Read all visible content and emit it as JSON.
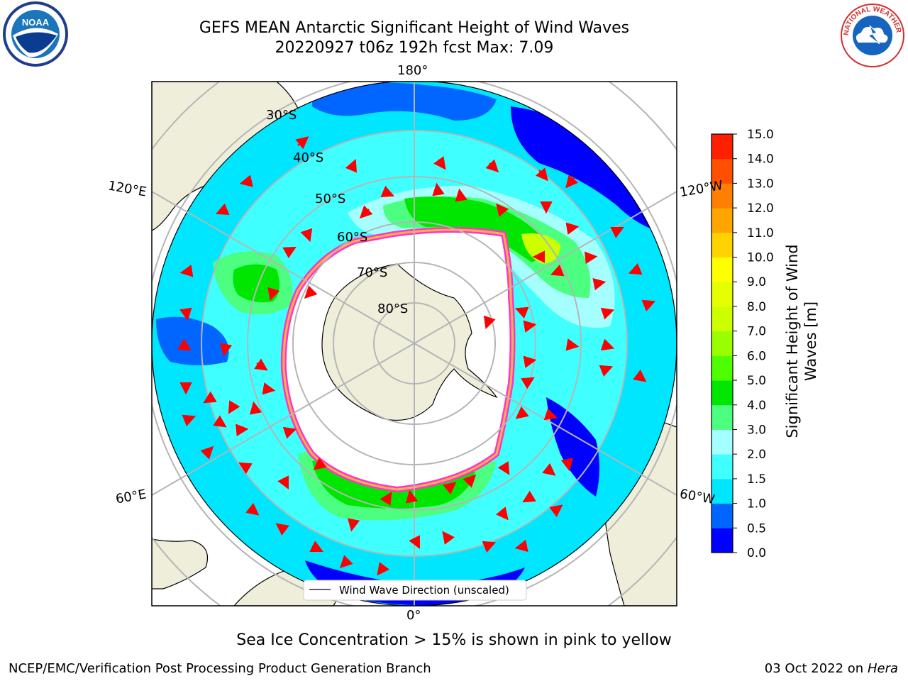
{
  "title_line1": "GEFS MEAN Antarctic Significant Height of Wind Waves",
  "title_line2": "20220927 t06z 192h fcst   Max: 7.09",
  "logos": {
    "left": "NOAA",
    "right": "NATIONAL WEATHER SERVICE"
  },
  "graticule": {
    "meridians": [
      "180°",
      "120°E",
      "120°W",
      "60°E",
      "60°W",
      "0°"
    ],
    "parallels": [
      "30°S",
      "40°S",
      "50°S",
      "60°S",
      "70°S",
      "80°S"
    ]
  },
  "legend": {
    "label": "Wind Wave Direction (unscaled)"
  },
  "colorbar": {
    "label": "Significant Height of Wind Waves [m]",
    "ticks": [
      "0.0",
      "0.5",
      "1.0",
      "1.5",
      "2.0",
      "3.0",
      "4.0",
      "5.0",
      "6.0",
      "7.0",
      "8.0",
      "9.0",
      "10.0",
      "11.0",
      "12.0",
      "13.0",
      "14.0",
      "15.0"
    ],
    "colors": [
      "#0000ff",
      "#0066ff",
      "#00e6ff",
      "#40ffff",
      "#a6ffff",
      "#4cff80",
      "#00e600",
      "#4dff00",
      "#99ff00",
      "#ccff00",
      "#e6ff00",
      "#ffff00",
      "#ffd200",
      "#ffa500",
      "#ff7f00",
      "#ff5000",
      "#ff2000"
    ]
  },
  "note": "Sea Ice Concentration > 15% is shown in pink to yellow",
  "footer_left": "NCEP/EMC/Verification Post Processing Product Generation Branch",
  "footer_date": "03 Oct 2022 on",
  "footer_machine": "Hera"
}
